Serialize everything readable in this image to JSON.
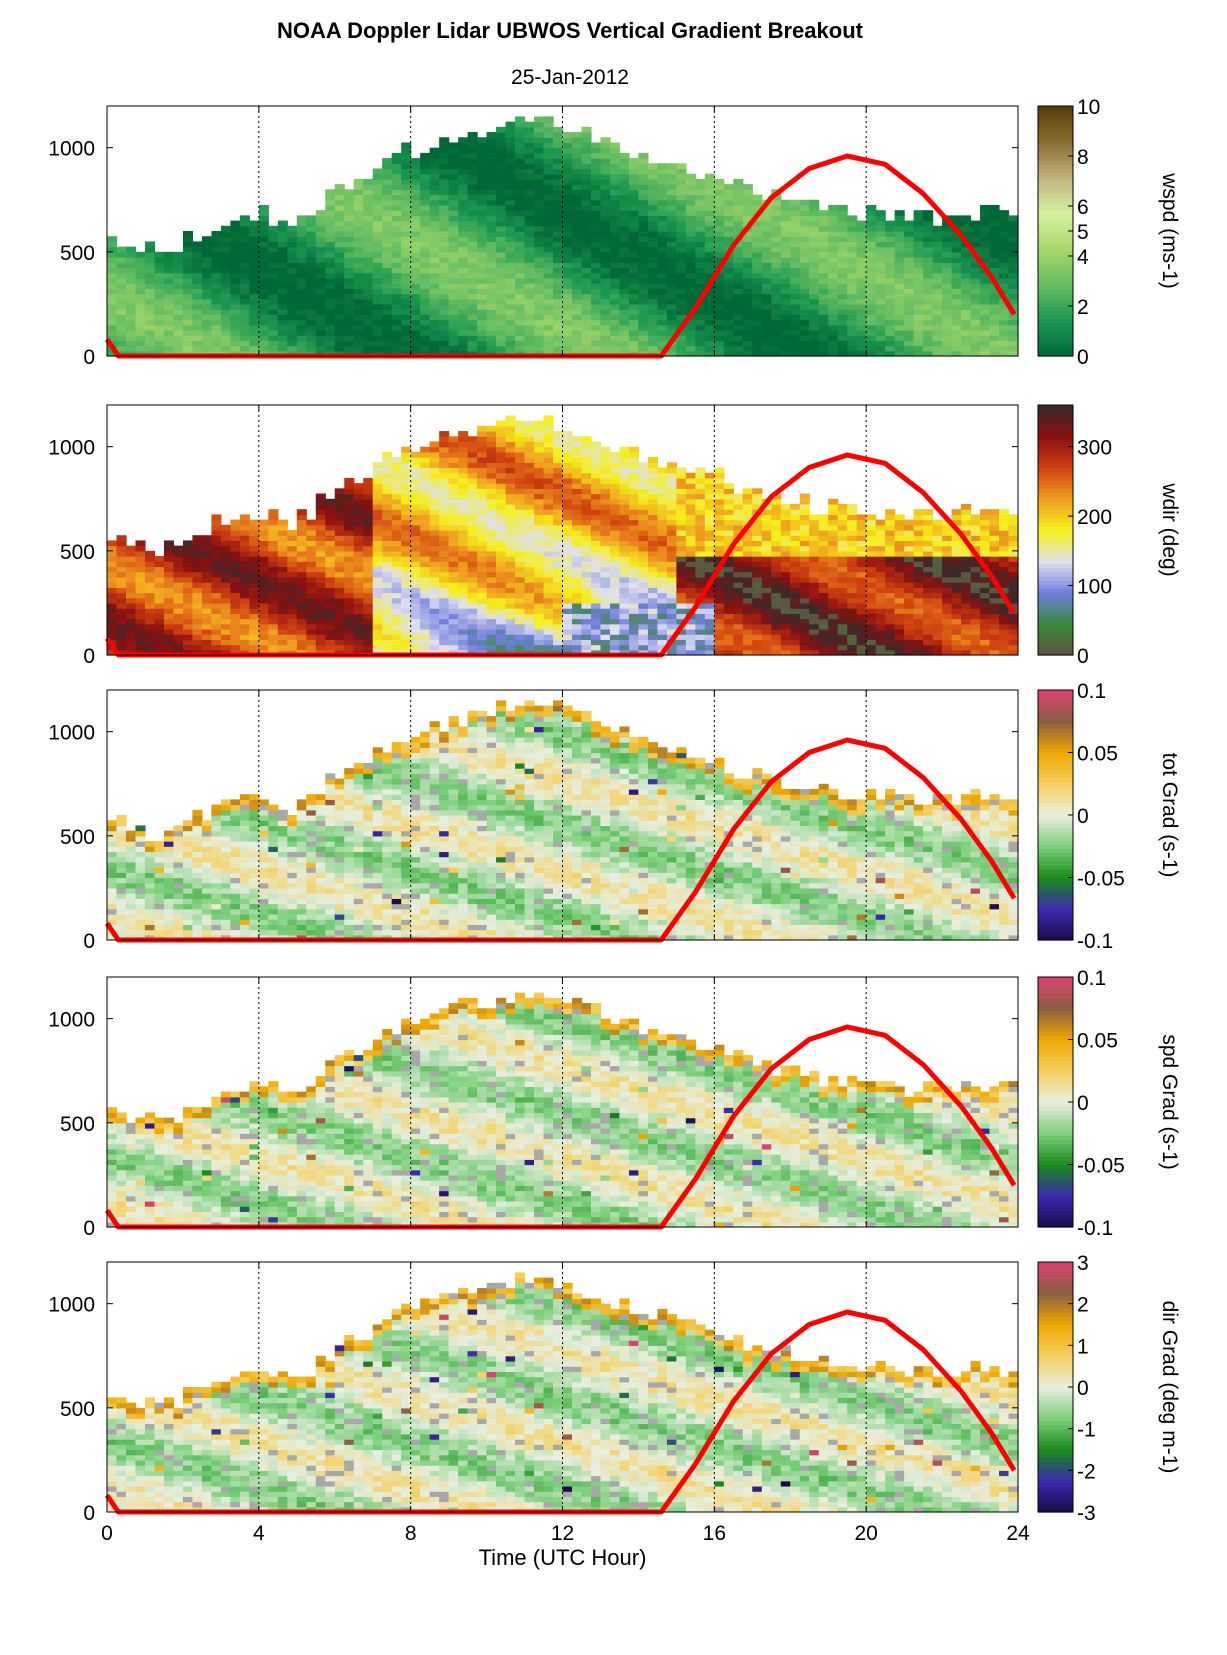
{
  "title": "NOAA Doppler Lidar  UBWOS  Vertical Gradient Breakout",
  "date": "25-Jan-2012",
  "xlabel": "Time (UTC Hour)",
  "chart_data": [
    {
      "type": "heatmap",
      "ylabel": "",
      "colorbar_label": "wspd (ms-1)",
      "colorbar_ticks": [
        0,
        2,
        4,
        5,
        6,
        8,
        10
      ],
      "clim": [
        0,
        10
      ],
      "xlim": [
        0,
        24
      ],
      "ylim": [
        0,
        1200
      ],
      "xticks": [
        0,
        4,
        8,
        12,
        16,
        20,
        24
      ],
      "yticks": [
        0,
        500,
        1000
      ],
      "grid": "vertical dotted at 4, 8, 12, 16, 20",
      "colormap": [
        "#006837",
        "#1a9850",
        "#66bd63",
        "#a6d96a",
        "#d9f0a3",
        "#c2b280",
        "#8c6d31",
        "#5a3a0a"
      ],
      "field_top": [
        [
          0,
          600
        ],
        [
          1,
          520
        ],
        [
          2,
          560
        ],
        [
          3,
          650
        ],
        [
          4,
          700
        ],
        [
          5,
          650
        ],
        [
          6,
          800
        ],
        [
          7,
          900
        ],
        [
          8,
          1000
        ],
        [
          9,
          1050
        ],
        [
          10,
          1100
        ],
        [
          11,
          1150
        ],
        [
          12,
          1120
        ],
        [
          13,
          1050
        ],
        [
          14,
          980
        ],
        [
          15,
          920
        ],
        [
          16,
          880
        ],
        [
          17,
          800
        ],
        [
          18,
          760
        ],
        [
          19,
          720
        ],
        [
          20,
          700
        ],
        [
          21,
          680
        ],
        [
          22,
          680
        ],
        [
          23,
          700
        ],
        [
          24,
          700
        ]
      ],
      "red_curve": [
        [
          0,
          80
        ],
        [
          0.3,
          0
        ],
        [
          14.6,
          0
        ],
        [
          15.5,
          230
        ],
        [
          16.5,
          530
        ],
        [
          17.5,
          760
        ],
        [
          18.5,
          900
        ],
        [
          19.5,
          960
        ],
        [
          20.5,
          920
        ],
        [
          21.5,
          780
        ],
        [
          22.5,
          580
        ],
        [
          23.3,
          380
        ],
        [
          23.9,
          200
        ]
      ]
    },
    {
      "type": "heatmap",
      "ylabel": "",
      "colorbar_label": "wdir (deg)",
      "colorbar_ticks": [
        0,
        100,
        200,
        300
      ],
      "clim": [
        0,
        360
      ],
      "xlim": [
        0,
        24
      ],
      "ylim": [
        0,
        1200
      ],
      "xticks": [
        0,
        4,
        8,
        12,
        16,
        20,
        24
      ],
      "yticks": [
        0,
        500,
        1000
      ],
      "grid": "vertical dotted at 4, 8, 12, 16, 20",
      "colormap": [
        "#5b5340",
        "#3a8a3a",
        "#6f7fe0",
        "#e0e0ee",
        "#f5f11a",
        "#f0a020",
        "#d04010",
        "#8a1010",
        "#3a2a2a"
      ],
      "field_top": [
        [
          0,
          600
        ],
        [
          1,
          520
        ],
        [
          2,
          560
        ],
        [
          3,
          650
        ],
        [
          4,
          700
        ],
        [
          5,
          650
        ],
        [
          6,
          800
        ],
        [
          7,
          900
        ],
        [
          8,
          1000
        ],
        [
          9,
          1050
        ],
        [
          10,
          1100
        ],
        [
          11,
          1150
        ],
        [
          12,
          1120
        ],
        [
          13,
          1050
        ],
        [
          14,
          980
        ],
        [
          15,
          920
        ],
        [
          16,
          880
        ],
        [
          17,
          800
        ],
        [
          18,
          760
        ],
        [
          19,
          720
        ],
        [
          20,
          700
        ],
        [
          21,
          680
        ],
        [
          22,
          680
        ],
        [
          23,
          700
        ],
        [
          24,
          700
        ]
      ],
      "red_curve": [
        [
          0,
          80
        ],
        [
          0.3,
          0
        ],
        [
          14.6,
          0
        ],
        [
          15.5,
          230
        ],
        [
          16.5,
          530
        ],
        [
          17.5,
          760
        ],
        [
          18.5,
          900
        ],
        [
          19.5,
          960
        ],
        [
          20.5,
          920
        ],
        [
          21.5,
          780
        ],
        [
          22.5,
          580
        ],
        [
          23.3,
          380
        ],
        [
          23.9,
          200
        ]
      ]
    },
    {
      "type": "heatmap",
      "ylabel": "",
      "colorbar_label": "tot Grad (s-1)",
      "colorbar_ticks": [
        -0.1,
        -0.05,
        0,
        0.05,
        0.1
      ],
      "clim": [
        -0.1,
        0.1
      ],
      "xlim": [
        0,
        24
      ],
      "ylim": [
        0,
        1200
      ],
      "xticks": [
        0,
        4,
        8,
        12,
        16,
        20,
        24
      ],
      "yticks": [
        0,
        500,
        1000
      ],
      "grid": "vertical dotted at 4, 8, 12, 16, 20",
      "colormap": [
        "#1a0a4a",
        "#3b2ab0",
        "#1a8a1a",
        "#7ccf7c",
        "#e8efe0",
        "#f5d060",
        "#f0a800",
        "#8a6040",
        "#e04070"
      ],
      "field_top": [
        [
          0,
          600
        ],
        [
          1,
          520
        ],
        [
          2,
          560
        ],
        [
          3,
          650
        ],
        [
          4,
          700
        ],
        [
          5,
          650
        ],
        [
          6,
          800
        ],
        [
          7,
          900
        ],
        [
          8,
          1000
        ],
        [
          9,
          1050
        ],
        [
          10,
          1100
        ],
        [
          11,
          1150
        ],
        [
          12,
          1120
        ],
        [
          13,
          1050
        ],
        [
          14,
          980
        ],
        [
          15,
          920
        ],
        [
          16,
          880
        ],
        [
          17,
          800
        ],
        [
          18,
          760
        ],
        [
          19,
          720
        ],
        [
          20,
          700
        ],
        [
          21,
          680
        ],
        [
          22,
          680
        ],
        [
          23,
          700
        ],
        [
          24,
          700
        ]
      ],
      "red_curve": [
        [
          0,
          80
        ],
        [
          0.3,
          0
        ],
        [
          14.6,
          0
        ],
        [
          15.5,
          230
        ],
        [
          16.5,
          530
        ],
        [
          17.5,
          760
        ],
        [
          18.5,
          900
        ],
        [
          19.5,
          960
        ],
        [
          20.5,
          920
        ],
        [
          21.5,
          780
        ],
        [
          22.5,
          580
        ],
        [
          23.3,
          380
        ],
        [
          23.9,
          200
        ]
      ]
    },
    {
      "type": "heatmap",
      "ylabel": "",
      "colorbar_label": "spd Grad (s-1)",
      "colorbar_ticks": [
        -0.1,
        -0.05,
        0,
        0.05,
        0.1
      ],
      "clim": [
        -0.1,
        0.1
      ],
      "xlim": [
        0,
        24
      ],
      "ylim": [
        0,
        1200
      ],
      "xticks": [
        0,
        4,
        8,
        12,
        16,
        20,
        24
      ],
      "yticks": [
        0,
        500,
        1000
      ],
      "grid": "vertical dotted at 4, 8, 12, 16, 20",
      "colormap": [
        "#1a0a4a",
        "#3b2ab0",
        "#1a8a1a",
        "#7ccf7c",
        "#e8efe0",
        "#f5d060",
        "#f0a800",
        "#8a6040",
        "#e04070"
      ],
      "field_top": [
        [
          0,
          600
        ],
        [
          1,
          520
        ],
        [
          2,
          560
        ],
        [
          3,
          650
        ],
        [
          4,
          700
        ],
        [
          5,
          650
        ],
        [
          6,
          800
        ],
        [
          7,
          900
        ],
        [
          8,
          1000
        ],
        [
          9,
          1050
        ],
        [
          10,
          1100
        ],
        [
          11,
          1150
        ],
        [
          12,
          1120
        ],
        [
          13,
          1050
        ],
        [
          14,
          980
        ],
        [
          15,
          920
        ],
        [
          16,
          880
        ],
        [
          17,
          800
        ],
        [
          18,
          760
        ],
        [
          19,
          720
        ],
        [
          20,
          700
        ],
        [
          21,
          680
        ],
        [
          22,
          680
        ],
        [
          23,
          700
        ],
        [
          24,
          700
        ]
      ],
      "red_curve": [
        [
          0,
          80
        ],
        [
          0.3,
          0
        ],
        [
          14.6,
          0
        ],
        [
          15.5,
          230
        ],
        [
          16.5,
          530
        ],
        [
          17.5,
          760
        ],
        [
          18.5,
          900
        ],
        [
          19.5,
          960
        ],
        [
          20.5,
          920
        ],
        [
          21.5,
          780
        ],
        [
          22.5,
          580
        ],
        [
          23.3,
          380
        ],
        [
          23.9,
          200
        ]
      ]
    },
    {
      "type": "heatmap",
      "ylabel": "",
      "colorbar_label": "dir Grad (deg m-1)",
      "colorbar_ticks": [
        -3,
        -2,
        -1,
        0,
        1,
        2,
        3
      ],
      "clim": [
        -3,
        3
      ],
      "xlim": [
        0,
        24
      ],
      "ylim": [
        0,
        1200
      ],
      "xticks": [
        0,
        4,
        8,
        12,
        16,
        20,
        24
      ],
      "yticks": [
        0,
        500,
        1000
      ],
      "grid": "vertical dotted at 4, 8, 12, 16, 20",
      "colormap": [
        "#1a0a4a",
        "#3b2ab0",
        "#1a8a1a",
        "#7ccf7c",
        "#e8efe0",
        "#f5d060",
        "#f0a800",
        "#8a6040",
        "#e04070"
      ],
      "field_top": [
        [
          0,
          600
        ],
        [
          1,
          520
        ],
        [
          2,
          560
        ],
        [
          3,
          650
        ],
        [
          4,
          700
        ],
        [
          5,
          650
        ],
        [
          6,
          800
        ],
        [
          7,
          900
        ],
        [
          8,
          1000
        ],
        [
          9,
          1050
        ],
        [
          10,
          1100
        ],
        [
          11,
          1150
        ],
        [
          12,
          1120
        ],
        [
          13,
          1050
        ],
        [
          14,
          980
        ],
        [
          15,
          920
        ],
        [
          16,
          880
        ],
        [
          17,
          800
        ],
        [
          18,
          760
        ],
        [
          19,
          720
        ],
        [
          20,
          700
        ],
        [
          21,
          680
        ],
        [
          22,
          680
        ],
        [
          23,
          700
        ],
        [
          24,
          700
        ]
      ],
      "red_curve": [
        [
          0,
          80
        ],
        [
          0.3,
          0
        ],
        [
          14.6,
          0
        ],
        [
          15.5,
          230
        ],
        [
          16.5,
          530
        ],
        [
          17.5,
          760
        ],
        [
          18.5,
          900
        ],
        [
          19.5,
          960
        ],
        [
          20.5,
          920
        ],
        [
          21.5,
          780
        ],
        [
          22.5,
          580
        ],
        [
          23.3,
          380
        ],
        [
          23.9,
          200
        ]
      ]
    }
  ]
}
